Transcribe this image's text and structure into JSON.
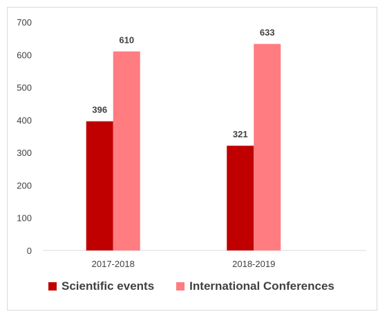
{
  "chart_data": {
    "type": "bar",
    "categories": [
      "2017-2018",
      "2018-2019"
    ],
    "series": [
      {
        "name": "Scientific events",
        "values": [
          396,
          321
        ],
        "color": "#c00000"
      },
      {
        "name": "International Conferences",
        "values": [
          610,
          633
        ],
        "color": "#ff7c80"
      }
    ],
    "yticks": [
      "0",
      "100",
      "200",
      "300",
      "400",
      "500",
      "600",
      "700"
    ],
    "ylim": [
      0,
      700
    ],
    "grid": false,
    "legend_position": "bottom",
    "title": "",
    "xlabel": "",
    "ylabel": ""
  }
}
